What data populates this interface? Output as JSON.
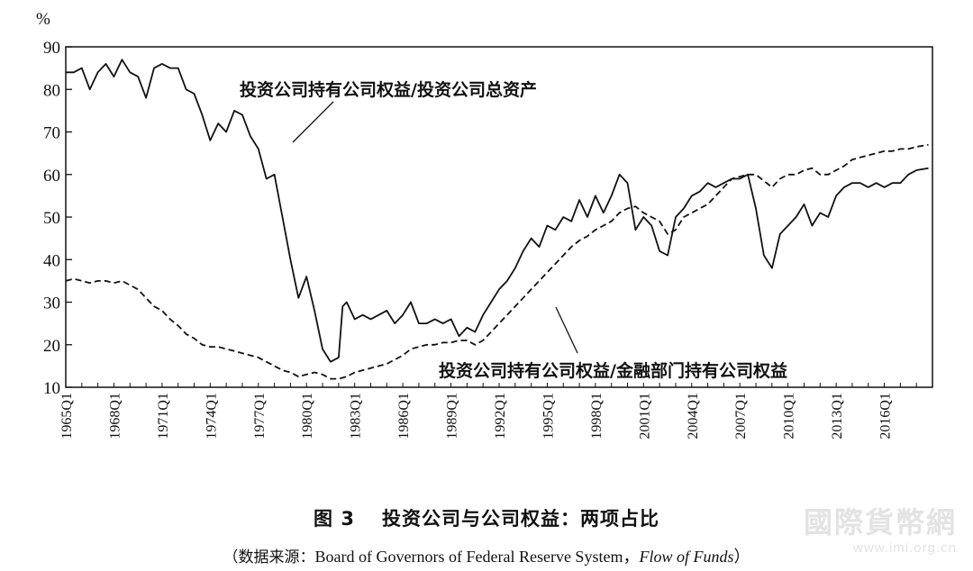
{
  "chart_data": {
    "type": "line",
    "unit_label": "%",
    "ylim": [
      10,
      90
    ],
    "y_ticks": [
      "10",
      "20",
      "30",
      "40",
      "50",
      "60",
      "70",
      "80",
      "90"
    ],
    "xlim": [
      1965.0,
      2019.0
    ],
    "x_tick_labels": [
      "1965Q1",
      "1968Q1",
      "1971Q1",
      "1974Q1",
      "1977Q1",
      "1980Q1",
      "1983Q1",
      "1986Q1",
      "1989Q1",
      "1992Q1",
      "1995Q1",
      "1998Q1",
      "2001Q1",
      "2004Q1",
      "2007Q1",
      "2010Q1",
      "2013Q1",
      "2016Q1"
    ],
    "grid": false,
    "series": [
      {
        "name": "投资公司持有公司权益/投资公司总资产",
        "style": "solid",
        "x": [
          1965.0,
          1965.5,
          1966.0,
          1966.5,
          1967.0,
          1967.5,
          1968.0,
          1968.5,
          1969.0,
          1969.5,
          1970.0,
          1970.5,
          1971.0,
          1971.5,
          1972.0,
          1972.5,
          1973.0,
          1973.5,
          1974.0,
          1974.5,
          1975.0,
          1975.5,
          1976.0,
          1976.5,
          1977.0,
          1977.5,
          1978.0,
          1978.5,
          1979.0,
          1979.5,
          1980.0,
          1980.5,
          1981.0,
          1981.5,
          1982.0,
          1982.25,
          1982.5,
          1983.0,
          1983.5,
          1984.0,
          1984.5,
          1985.0,
          1985.5,
          1986.0,
          1986.5,
          1987.0,
          1987.5,
          1988.0,
          1988.5,
          1989.0,
          1989.5,
          1990.0,
          1990.5,
          1991.0,
          1991.5,
          1992.0,
          1992.5,
          1993.0,
          1993.5,
          1994.0,
          1994.5,
          1995.0,
          1995.5,
          1996.0,
          1996.5,
          1997.0,
          1997.5,
          1998.0,
          1998.5,
          1999.0,
          1999.5,
          2000.0,
          2000.5,
          2001.0,
          2001.5,
          2002.0,
          2002.5,
          2003.0,
          2003.5,
          2004.0,
          2004.5,
          2005.0,
          2005.5,
          2006.0,
          2006.5,
          2007.0,
          2007.5,
          2008.0,
          2008.5,
          2009.0,
          2009.5,
          2010.0,
          2010.5,
          2011.0,
          2011.5,
          2012.0,
          2012.5,
          2013.0,
          2013.5,
          2014.0,
          2014.5,
          2015.0,
          2015.5,
          2016.0,
          2016.5,
          2017.0,
          2017.5,
          2018.0,
          2018.75
        ],
        "values": [
          84,
          84,
          85,
          80,
          84,
          86,
          83,
          87,
          84,
          83,
          78,
          85,
          86,
          85,
          85,
          80,
          79,
          74,
          68,
          72,
          70,
          75,
          74,
          69,
          66,
          59,
          60,
          50,
          40,
          31,
          36,
          28,
          19,
          16,
          17,
          29,
          30,
          26,
          27,
          26,
          27,
          28,
          25,
          27,
          30,
          25,
          25,
          26,
          25,
          26,
          22,
          24,
          23,
          27,
          30,
          33,
          35,
          38,
          42,
          45,
          43,
          48,
          47,
          50,
          49,
          54,
          50,
          55,
          51,
          55,
          60,
          58,
          47,
          50,
          48,
          42,
          41,
          50,
          52,
          55,
          56,
          58,
          57,
          58,
          59,
          59,
          60,
          52,
          41,
          38,
          46,
          48,
          50,
          53,
          48,
          51,
          50,
          55,
          57,
          58,
          58,
          57,
          58,
          57,
          58,
          58,
          60,
          61,
          61.5
        ],
        "label": "投资公司持有公司权益/投资公司总资产"
      },
      {
        "name": "投资公司持有公司权益/金融部门持有公司权益",
        "style": "dashed",
        "x": [
          1965.0,
          1965.5,
          1966.0,
          1966.5,
          1967.0,
          1967.5,
          1968.0,
          1968.5,
          1969.0,
          1969.5,
          1970.0,
          1970.5,
          1971.0,
          1971.5,
          1972.0,
          1972.5,
          1973.0,
          1973.5,
          1974.0,
          1974.5,
          1975.0,
          1975.5,
          1976.0,
          1976.5,
          1977.0,
          1977.5,
          1978.0,
          1978.5,
          1979.0,
          1979.5,
          1980.0,
          1980.5,
          1981.0,
          1981.5,
          1982.0,
          1982.5,
          1983.0,
          1983.5,
          1984.0,
          1984.5,
          1985.0,
          1985.5,
          1986.0,
          1986.5,
          1987.0,
          1987.5,
          1988.0,
          1988.5,
          1989.0,
          1989.5,
          1990.0,
          1990.5,
          1991.0,
          1991.5,
          1992.0,
          1992.5,
          1993.0,
          1993.5,
          1994.0,
          1994.5,
          1995.0,
          1995.5,
          1996.0,
          1996.5,
          1997.0,
          1997.5,
          1998.0,
          1998.5,
          1999.0,
          1999.5,
          2000.0,
          2000.5,
          2001.0,
          2001.5,
          2002.0,
          2002.5,
          2003.0,
          2003.5,
          2004.0,
          2004.5,
          2005.0,
          2005.5,
          2006.0,
          2006.5,
          2007.0,
          2007.5,
          2008.0,
          2008.5,
          2009.0,
          2009.5,
          2010.0,
          2010.5,
          2011.0,
          2011.5,
          2012.0,
          2012.5,
          2013.0,
          2013.5,
          2014.0,
          2014.5,
          2015.0,
          2015.5,
          2016.0,
          2016.5,
          2017.0,
          2017.5,
          2018.0,
          2018.75
        ],
        "values": [
          35,
          35.5,
          35,
          34.5,
          35,
          35,
          34.5,
          35,
          34,
          33,
          31,
          29,
          28,
          26,
          24.5,
          22.5,
          21.5,
          20,
          19.5,
          19.5,
          19,
          18.5,
          18,
          17.5,
          17,
          16,
          15,
          14,
          13.5,
          12.5,
          13,
          13.5,
          13,
          12,
          12,
          12.5,
          13.5,
          14,
          14.5,
          15,
          15.5,
          16.5,
          17.5,
          19,
          19.5,
          20,
          20,
          20.5,
          20.5,
          21,
          21,
          20,
          21,
          23,
          25,
          27,
          29,
          31,
          33,
          35,
          37,
          39,
          41,
          43,
          44.5,
          45.5,
          47,
          48,
          49,
          51,
          52,
          52.5,
          51,
          50,
          49,
          46,
          47,
          50,
          51,
          52,
          53,
          55,
          57,
          59,
          59.5,
          60,
          60,
          58.5,
          57,
          59,
          60,
          60,
          61,
          61.5,
          60,
          60,
          61,
          62,
          63.5,
          64,
          64.5,
          65,
          65.5,
          65.5,
          66,
          66,
          66.5,
          67
        ],
        "label": "投资公司持有公司权益/金融部门持有公司权益"
      }
    ]
  },
  "figure": {
    "number": "图 3",
    "title": "投资公司与公司权益：两项占比",
    "source_prefix": "（数据来源：",
    "source_text": "Board of Governors of Federal Reserve System，",
    "source_italic": "Flow of Funds",
    "source_suffix": "）"
  },
  "watermark": {
    "chinese": "國際貨幣網",
    "url": "www.imi.org.cn"
  },
  "colors": {
    "line": "#111111",
    "axis": "#111111",
    "background": "#ffffff",
    "watermark": "#e3e3e3"
  }
}
